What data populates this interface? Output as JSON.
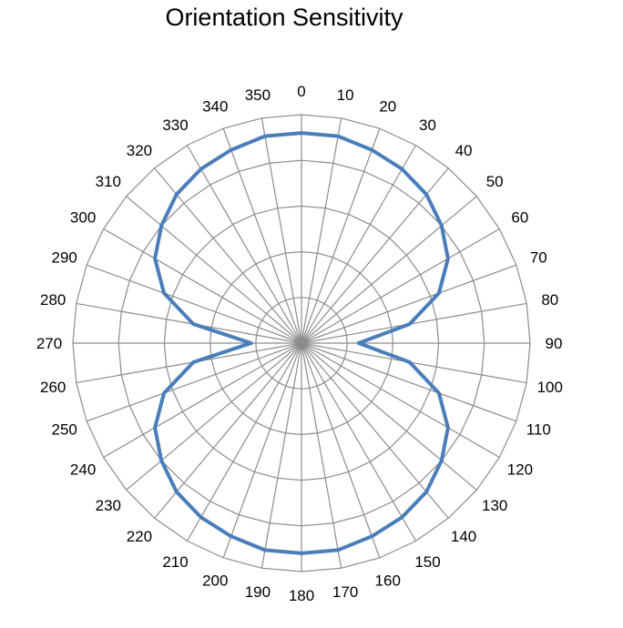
{
  "chart_data": {
    "type": "radar",
    "title": "Orientation Sensitivity",
    "angle_labels": [
      "0",
      "10",
      "20",
      "30",
      "40",
      "50",
      "60",
      "70",
      "80",
      "90",
      "100",
      "110",
      "120",
      "130",
      "140",
      "150",
      "160",
      "170",
      "180",
      "190",
      "200",
      "210",
      "220",
      "230",
      "240",
      "250",
      "260",
      "270",
      "280",
      "290",
      "300",
      "310",
      "320",
      "330",
      "340",
      "350"
    ],
    "r_range": [
      0,
      5
    ],
    "r_gridlines": [
      1,
      2,
      3,
      4,
      5
    ],
    "r_tick_labels_shown": false,
    "grid": true,
    "legend": "none",
    "series_color": "#4a7ebb",
    "grid_color": "#8c8c8c",
    "series": [
      {
        "values": [
          4.6,
          4.6,
          4.5,
          4.4,
          4.25,
          4.0,
          3.7,
          3.2,
          2.4,
          1.25,
          2.4,
          3.2,
          3.7,
          4.0,
          4.25,
          4.4,
          4.5,
          4.6,
          4.6,
          4.6,
          4.5,
          4.4,
          4.25,
          4.0,
          3.7,
          3.2,
          2.4,
          1.1,
          2.4,
          3.2,
          3.7,
          4.0,
          4.25,
          4.4,
          4.5,
          4.6
        ]
      }
    ]
  }
}
